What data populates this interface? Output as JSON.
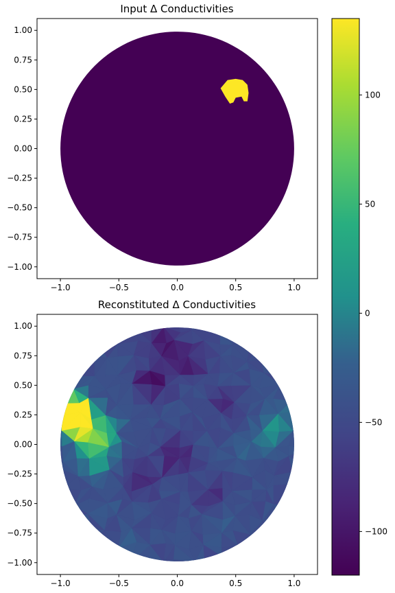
{
  "chart_data": [
    {
      "type": "heatmap",
      "title": "Input Δ Conductivities",
      "xlim": [
        -1.2,
        1.2
      ],
      "ylim": [
        -1.1,
        1.1
      ],
      "xticks": [
        "−1.0",
        "−0.5",
        "0.0",
        "0.5",
        "1.0"
      ],
      "yticks": [
        "1.00",
        "0.75",
        "0.50",
        "0.25",
        "0.00",
        "−0.25",
        "−0.50",
        "−0.75",
        "−1.00"
      ],
      "background_value": -120,
      "inclusion": {
        "value": 135,
        "polygon": [
          [
            0.37,
            0.51
          ],
          [
            0.43,
            0.58
          ],
          [
            0.5,
            0.59
          ],
          [
            0.56,
            0.58
          ],
          [
            0.6,
            0.54
          ],
          [
            0.61,
            0.47
          ],
          [
            0.6,
            0.4
          ],
          [
            0.57,
            0.4
          ],
          [
            0.55,
            0.44
          ],
          [
            0.5,
            0.43
          ],
          [
            0.48,
            0.39
          ],
          [
            0.45,
            0.38
          ],
          [
            0.41,
            0.44
          ]
        ]
      },
      "grid": false
    },
    {
      "type": "heatmap",
      "title": "Reconstituted Δ Conductivities",
      "xlim": [
        -1.2,
        1.2
      ],
      "ylim": [
        -1.1,
        1.1
      ],
      "xticks": [
        "−1.0",
        "−0.5",
        "0.0",
        "0.5",
        "1.0"
      ],
      "yticks": [
        "1.00",
        "0.75",
        "0.50",
        "0.25",
        "0.00",
        "−0.25",
        "−0.50",
        "−0.75",
        "−1.00"
      ],
      "background_value": -45,
      "features": [
        {
          "x": -0.88,
          "y": 0.2,
          "value": 135
        },
        {
          "x": -0.85,
          "y": 0.3,
          "value": 110
        },
        {
          "x": -0.75,
          "y": 0.05,
          "value": 60
        },
        {
          "x": -0.7,
          "y": -0.15,
          "value": 20
        },
        {
          "x": -0.6,
          "y": 0.1,
          "value": 30
        },
        {
          "x": 0.8,
          "y": 0.1,
          "value": 0
        },
        {
          "x": 0.9,
          "y": 0.25,
          "value": -10
        },
        {
          "x": 0.6,
          "y": -0.05,
          "value": -20
        },
        {
          "x": -0.2,
          "y": 0.55,
          "value": -110
        },
        {
          "x": -0.1,
          "y": 0.85,
          "value": -100
        },
        {
          "x": 0.1,
          "y": 0.7,
          "value": -95
        },
        {
          "x": 0.0,
          "y": -0.1,
          "value": -100
        },
        {
          "x": -0.3,
          "y": -0.3,
          "value": -85
        },
        {
          "x": 0.3,
          "y": -0.4,
          "value": -80
        },
        {
          "x": 0.4,
          "y": 0.35,
          "value": -75
        },
        {
          "x": -0.4,
          "y": -0.8,
          "value": -30
        },
        {
          "x": 0.4,
          "y": -0.7,
          "value": -30
        },
        {
          "x": -0.6,
          "y": -0.5,
          "value": -35
        }
      ],
      "grid": false
    }
  ],
  "colorbar": {
    "colormap": "viridis",
    "range": [
      -120,
      135
    ],
    "ticks": [
      {
        "value": 100,
        "label": "100"
      },
      {
        "value": 50,
        "label": "50"
      },
      {
        "value": 0,
        "label": "0"
      },
      {
        "value": -50,
        "label": "−50"
      },
      {
        "value": -100,
        "label": "−100"
      }
    ]
  }
}
